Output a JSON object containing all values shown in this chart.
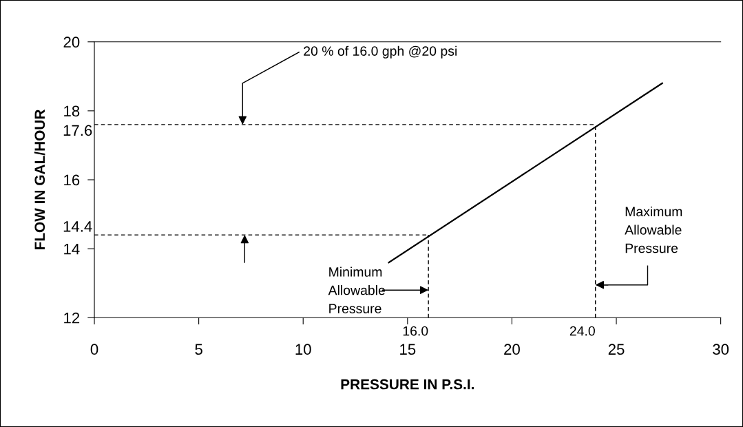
{
  "chart_data": {
    "type": "line",
    "xlabel": "PRESSURE IN P.S.I.",
    "ylabel": "FLOW IN GAL/HOUR",
    "x": [
      14.1,
      27.2
    ],
    "series": [
      {
        "color": "#000000",
        "values": [
          13.6,
          18.8
        ]
      }
    ],
    "xlim": [
      0,
      30
    ],
    "xticks": [
      0,
      5,
      10,
      15,
      20,
      25,
      30
    ],
    "ylim": [
      12,
      20
    ],
    "yticks": [
      12,
      14,
      16,
      18,
      20
    ],
    "ref_lines": [
      {
        "axis": "y",
        "value": 17.6,
        "label": "17.6",
        "line_style": "dashed",
        "color": "#000000"
      },
      {
        "axis": "y",
        "value": 14.4,
        "label": "14.4",
        "line_style": "dashed",
        "color": "#000000"
      },
      {
        "axis": "x",
        "value": 24.0,
        "label": "24.0",
        "line_style": "dashed",
        "color": "#000000"
      },
      {
        "axis": "x",
        "value": 16.0,
        "label": "16.0",
        "line_style": "dashed",
        "color": "#000000"
      }
    ],
    "annotations": [
      "20 % of 16.0 gph @20 psi",
      "Minimum\nAllowable\nPressure",
      "Maximum\nAllowable\nPressure"
    ],
    "grid": false,
    "legend": false,
    "marker": "none",
    "line_style": "solid"
  }
}
